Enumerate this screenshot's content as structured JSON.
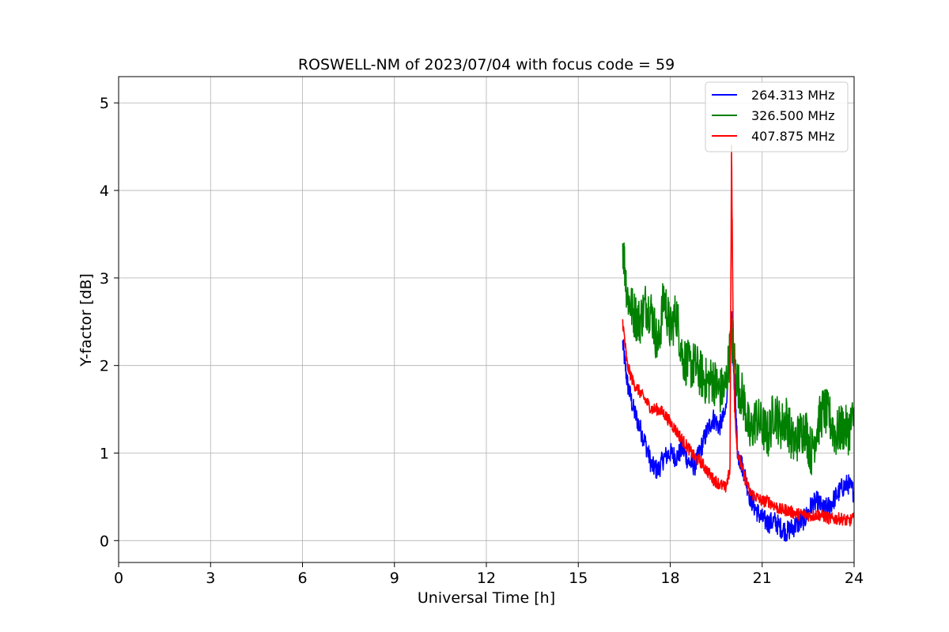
{
  "chart_data": {
    "type": "line",
    "title": "ROSWELL-NM of 2023/07/04 with focus code = 59",
    "xlabel": "Universal Time [h]",
    "ylabel": "Y-factor [dB]",
    "xlim": [
      0,
      24
    ],
    "ylim": [
      -0.25,
      5.3
    ],
    "xticks": [
      0,
      3,
      6,
      9,
      12,
      15,
      18,
      21,
      24
    ],
    "yticks": [
      0,
      1,
      2,
      3,
      4,
      5
    ],
    "grid": true,
    "legend_position": "top-right",
    "series": [
      {
        "name": "264.313 MHz",
        "color": "#0000ff",
        "x": [
          16.45,
          16.6,
          16.8,
          17.0,
          17.2,
          17.4,
          17.6,
          17.8,
          18.0,
          18.2,
          18.4,
          18.6,
          18.8,
          19.0,
          19.2,
          19.4,
          19.6,
          19.8,
          20.0,
          20.1,
          20.2,
          20.4,
          20.6,
          20.8,
          21.0,
          21.2,
          21.4,
          21.6,
          21.8,
          22.0,
          22.2,
          22.4,
          22.6,
          22.8,
          23.0,
          23.2,
          23.4,
          23.6,
          23.8,
          24.0
        ],
        "y": [
          2.25,
          1.8,
          1.5,
          1.3,
          1.1,
          0.85,
          0.8,
          0.95,
          1.0,
          0.95,
          1.05,
          0.9,
          0.85,
          1.05,
          1.25,
          1.4,
          1.3,
          1.45,
          2.5,
          1.8,
          1.0,
          0.8,
          0.5,
          0.35,
          0.25,
          0.2,
          0.22,
          0.15,
          0.1,
          0.15,
          0.2,
          0.25,
          0.4,
          0.45,
          0.35,
          0.4,
          0.5,
          0.6,
          0.65,
          0.55
        ]
      },
      {
        "name": "326.500 MHz",
        "color": "#008000",
        "x": [
          16.45,
          16.6,
          16.8,
          17.0,
          17.2,
          17.4,
          17.6,
          17.8,
          18.0,
          18.2,
          18.4,
          18.6,
          18.8,
          19.0,
          19.2,
          19.4,
          19.6,
          19.8,
          20.0,
          20.2,
          20.4,
          20.6,
          20.8,
          21.0,
          21.2,
          21.4,
          21.6,
          21.8,
          22.0,
          22.2,
          22.4,
          22.6,
          22.8,
          23.0,
          23.2,
          23.4,
          23.6,
          23.8,
          24.0
        ],
        "y": [
          3.4,
          2.8,
          2.6,
          2.5,
          2.7,
          2.6,
          2.2,
          2.8,
          2.4,
          2.6,
          2.1,
          2.0,
          2.0,
          1.9,
          1.8,
          1.85,
          1.7,
          1.75,
          2.3,
          1.8,
          1.6,
          1.2,
          1.4,
          1.3,
          1.2,
          1.5,
          1.3,
          1.4,
          1.1,
          1.2,
          1.3,
          1.0,
          1.3,
          1.5,
          1.4,
          1.2,
          1.3,
          1.25,
          1.4
        ]
      },
      {
        "name": "407.875 MHz",
        "color": "#ff0000",
        "x": [
          16.45,
          16.6,
          16.8,
          17.0,
          17.2,
          17.4,
          17.6,
          17.8,
          18.0,
          18.2,
          18.4,
          18.6,
          18.8,
          19.0,
          19.2,
          19.4,
          19.6,
          19.8,
          19.95,
          20.0,
          20.05,
          20.1,
          20.2,
          20.4,
          20.6,
          20.8,
          21.0,
          21.2,
          21.4,
          21.6,
          21.8,
          22.0,
          22.2,
          22.4,
          22.6,
          22.8,
          23.0,
          23.2,
          23.4,
          23.6,
          23.8,
          24.0
        ],
        "y": [
          2.5,
          2.0,
          1.8,
          1.7,
          1.6,
          1.5,
          1.5,
          1.45,
          1.35,
          1.25,
          1.15,
          1.05,
          0.95,
          0.9,
          0.8,
          0.7,
          0.65,
          0.6,
          0.8,
          4.5,
          2.5,
          1.5,
          1.0,
          0.75,
          0.55,
          0.5,
          0.45,
          0.45,
          0.4,
          0.35,
          0.35,
          0.32,
          0.3,
          0.3,
          0.28,
          0.3,
          0.28,
          0.25,
          0.25,
          0.25,
          0.22,
          0.25
        ]
      }
    ]
  }
}
